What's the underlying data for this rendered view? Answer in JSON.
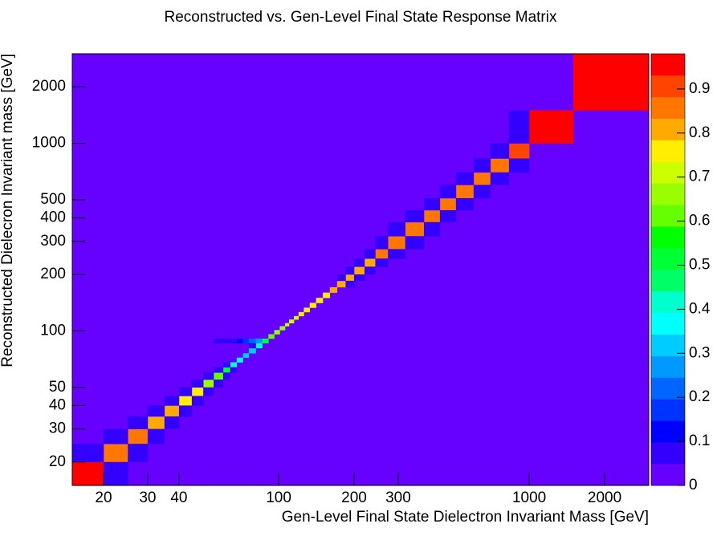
{
  "chart_data": {
    "type": "heatmap",
    "title": "Reconstructed vs. Gen-Level Final State Response Matrix",
    "xlabel": "Gen-Level Final State Dielectron Invariant Mass [GeV]",
    "ylabel": "Reconstructed Dielecron Invariant mass [GeV]",
    "xscale": "log",
    "yscale": "log",
    "xbins": [
      15,
      20,
      25,
      30,
      35,
      40,
      45,
      50,
      55,
      60,
      64,
      68,
      72,
      76,
      81,
      86,
      91,
      96,
      101,
      106,
      110,
      115,
      120,
      126,
      133,
      141,
      150,
      160,
      171,
      185,
      200,
      220,
      243,
      273,
      320,
      380,
      440,
      510,
      600,
      700,
      830,
      1000,
      1500,
      3000
    ],
    "ybins": [
      15,
      20,
      25,
      30,
      35,
      40,
      45,
      50,
      55,
      60,
      64,
      68,
      72,
      76,
      81,
      86,
      91,
      96,
      101,
      106,
      110,
      115,
      120,
      126,
      133,
      141,
      150,
      160,
      171,
      185,
      200,
      220,
      243,
      273,
      320,
      380,
      440,
      510,
      600,
      700,
      830,
      1000,
      1500,
      3000
    ],
    "xlim": [
      15,
      3000
    ],
    "ylim": [
      15,
      3000
    ],
    "xticks": [
      20,
      30,
      40,
      100,
      200,
      300,
      1000,
      2000
    ],
    "yticks": [
      20,
      30,
      40,
      50,
      100,
      200,
      300,
      400,
      500,
      1000,
      2000
    ],
    "zlim": [
      0,
      0.98
    ],
    "zticks": [
      0,
      0.1,
      0.2,
      0.3,
      0.4,
      0.5,
      0.6,
      0.7,
      0.8,
      0.9
    ],
    "palette": [
      "#6600ff",
      "#3300ff",
      "#0000ff",
      "#0033ff",
      "#0066ff",
      "#0099ff",
      "#00ccff",
      "#00ffff",
      "#00ffcc",
      "#00ff66",
      "#00ff33",
      "#00ff00",
      "#66ff00",
      "#99ff00",
      "#ccff00",
      "#ffee00",
      "#ffaa00",
      "#ff7700",
      "#ff4400",
      "#ff0000"
    ],
    "cells": [
      [
        0,
        0,
        0.97
      ],
      [
        1,
        1,
        0.85
      ],
      [
        2,
        2,
        0.84
      ],
      [
        3,
        3,
        0.83
      ],
      [
        4,
        4,
        0.82
      ],
      [
        5,
        5,
        0.76
      ],
      [
        6,
        6,
        0.74
      ],
      [
        7,
        7,
        0.67
      ],
      [
        8,
        8,
        0.6
      ],
      [
        9,
        9,
        0.52
      ],
      [
        10,
        10,
        0.42
      ],
      [
        11,
        11,
        0.37
      ],
      [
        12,
        12,
        0.33
      ],
      [
        13,
        13,
        0.32
      ],
      [
        14,
        14,
        0.4
      ],
      [
        15,
        15,
        0.52
      ],
      [
        16,
        16,
        0.6
      ],
      [
        17,
        17,
        0.64
      ],
      [
        18,
        18,
        0.67
      ],
      [
        19,
        19,
        0.69
      ],
      [
        20,
        20,
        0.71
      ],
      [
        21,
        21,
        0.72
      ],
      [
        22,
        22,
        0.74
      ],
      [
        23,
        23,
        0.75
      ],
      [
        24,
        24,
        0.76
      ],
      [
        25,
        25,
        0.77
      ],
      [
        26,
        26,
        0.78
      ],
      [
        27,
        27,
        0.79
      ],
      [
        28,
        28,
        0.8
      ],
      [
        29,
        29,
        0.81
      ],
      [
        30,
        30,
        0.82
      ],
      [
        31,
        31,
        0.83
      ],
      [
        32,
        32,
        0.84
      ],
      [
        33,
        33,
        0.85
      ],
      [
        34,
        34,
        0.85
      ],
      [
        35,
        35,
        0.85
      ],
      [
        36,
        36,
        0.85
      ],
      [
        37,
        37,
        0.85
      ],
      [
        38,
        38,
        0.85
      ],
      [
        39,
        39,
        0.85
      ],
      [
        40,
        40,
        0.9
      ],
      [
        41,
        41,
        0.95
      ],
      [
        42,
        42,
        0.98
      ],
      [
        0,
        1,
        0.07
      ],
      [
        1,
        2,
        0.07
      ],
      [
        2,
        3,
        0.07
      ],
      [
        3,
        4,
        0.07
      ],
      [
        4,
        5,
        0.07
      ],
      [
        5,
        6,
        0.07
      ],
      [
        6,
        7,
        0.07
      ],
      [
        7,
        8,
        0.07
      ],
      [
        8,
        9,
        0.07
      ],
      [
        9,
        10,
        0.07
      ],
      [
        1,
        0,
        0.07
      ],
      [
        2,
        1,
        0.07
      ],
      [
        3,
        2,
        0.07
      ],
      [
        4,
        3,
        0.07
      ],
      [
        5,
        4,
        0.07
      ],
      [
        6,
        5,
        0.07
      ],
      [
        7,
        6,
        0.07
      ],
      [
        8,
        7,
        0.07
      ],
      [
        9,
        8,
        0.07
      ],
      [
        10,
        9,
        0.07
      ],
      [
        8,
        15,
        0.05
      ],
      [
        9,
        15,
        0.06
      ],
      [
        10,
        15,
        0.08
      ],
      [
        11,
        15,
        0.12
      ],
      [
        12,
        15,
        0.17
      ],
      [
        13,
        15,
        0.22
      ],
      [
        14,
        15,
        0.27
      ],
      [
        13,
        14,
        0.06
      ],
      [
        28,
        29,
        0.06
      ],
      [
        29,
        30,
        0.06
      ],
      [
        30,
        31,
        0.06
      ],
      [
        31,
        32,
        0.06
      ],
      [
        32,
        33,
        0.06
      ],
      [
        33,
        34,
        0.06
      ],
      [
        34,
        35,
        0.06
      ],
      [
        35,
        36,
        0.06
      ],
      [
        36,
        37,
        0.06
      ],
      [
        37,
        38,
        0.06
      ],
      [
        38,
        39,
        0.06
      ],
      [
        39,
        40,
        0.07
      ],
      [
        40,
        41,
        0.07
      ],
      [
        29,
        28,
        0.06
      ],
      [
        30,
        29,
        0.06
      ],
      [
        31,
        30,
        0.06
      ],
      [
        32,
        31,
        0.06
      ],
      [
        33,
        32,
        0.06
      ],
      [
        34,
        33,
        0.06
      ],
      [
        35,
        34,
        0.06
      ],
      [
        36,
        35,
        0.06
      ],
      [
        37,
        36,
        0.06
      ],
      [
        38,
        37,
        0.06
      ],
      [
        39,
        38,
        0.06
      ],
      [
        40,
        39,
        0.06
      ]
    ]
  }
}
